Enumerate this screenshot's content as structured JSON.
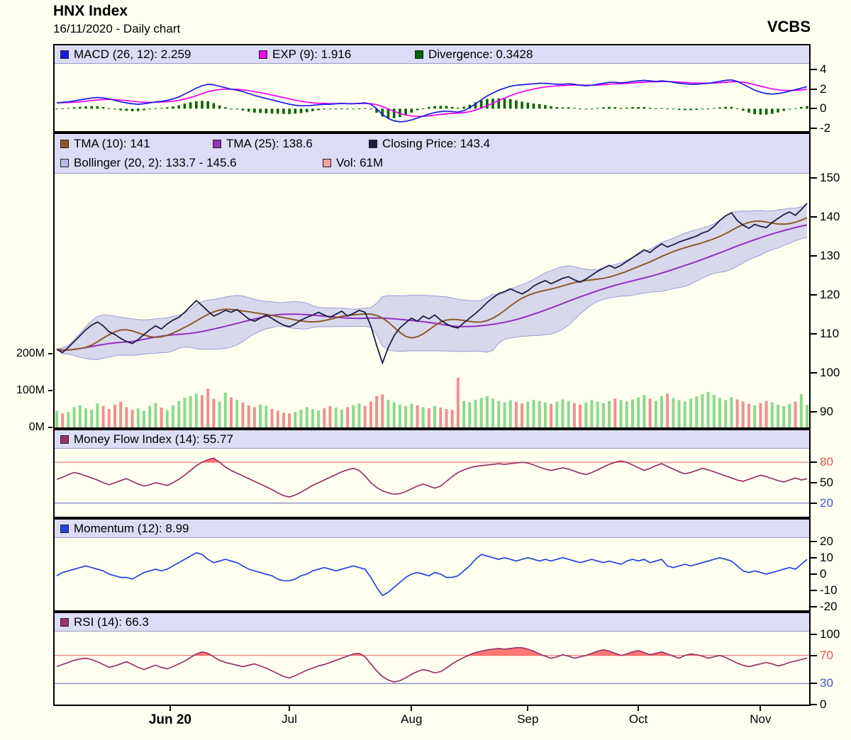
{
  "header": {
    "title": "HNX Index",
    "subtitle": "16/11/2020 - Daily chart",
    "brand": "VCBS"
  },
  "colors": {
    "background": "#FFFFF0",
    "legend_strip": "#DCDCF6",
    "frame": "#000000",
    "level_red": "#F07070",
    "level_blue": "#7070C8"
  },
  "xaxis": {
    "labels": [
      {
        "label": "Jun 20",
        "index": 19.5,
        "bold": true
      },
      {
        "label": "Jul",
        "index": 40,
        "bold": false
      },
      {
        "label": "Aug",
        "index": 61,
        "bold": false
      },
      {
        "label": "Sep",
        "index": 81,
        "bold": false
      },
      {
        "label": "Oct",
        "index": 100,
        "bold": false
      },
      {
        "label": "Nov",
        "index": 121,
        "bold": false
      }
    ]
  },
  "chart_data": [
    {
      "id": "macd",
      "type": "line",
      "title": "MACD panel",
      "legend": [
        {
          "swatch": "#1A1AE6",
          "label": "MACD (26, 12): 2.259"
        },
        {
          "swatch": "#EE00EE",
          "label": "EXP (9): 1.916"
        },
        {
          "swatch": "#006600",
          "label": "Divergence: 0.3428"
        }
      ],
      "ylim": [
        -2.3,
        4.6
      ],
      "yticks": [
        {
          "value": 4,
          "label": "4",
          "color": "#000000"
        },
        {
          "value": 2,
          "label": "2",
          "color": "#000000"
        },
        {
          "value": 0,
          "label": "0",
          "color": "#000000"
        },
        {
          "value": -2,
          "label": "-2",
          "color": "#000000"
        }
      ],
      "signal_period": 9,
      "macd": [
        0.6,
        0.65,
        0.7,
        0.8,
        0.9,
        1.0,
        1.1,
        1.15,
        1.1,
        1.0,
        0.85,
        0.7,
        0.6,
        0.5,
        0.45,
        0.5,
        0.6,
        0.7,
        0.75,
        0.85,
        1.0,
        1.2,
        1.5,
        1.8,
        2.1,
        2.35,
        2.5,
        2.45,
        2.3,
        2.15,
        2.0,
        1.9,
        1.75,
        1.55,
        1.35,
        1.2,
        1.05,
        0.9,
        0.75,
        0.6,
        0.45,
        0.35,
        0.3,
        0.3,
        0.35,
        0.4,
        0.45,
        0.45,
        0.5,
        0.55,
        0.5,
        0.5,
        0.55,
        0.6,
        0.45,
        0.0,
        -0.6,
        -1.0,
        -1.25,
        -1.35,
        -1.3,
        -1.15,
        -0.95,
        -0.75,
        -0.55,
        -0.4,
        -0.3,
        -0.25,
        -0.3,
        -0.35,
        -0.2,
        0.1,
        0.5,
        0.9,
        1.3,
        1.6,
        1.9,
        2.1,
        2.3,
        2.4,
        2.45,
        2.5,
        2.55,
        2.6,
        2.6,
        2.55,
        2.5,
        2.5,
        2.55,
        2.5,
        2.4,
        2.35,
        2.4,
        2.5,
        2.6,
        2.7,
        2.7,
        2.65,
        2.7,
        2.8,
        2.85,
        2.9,
        2.85,
        2.8,
        2.85,
        2.8,
        2.7,
        2.6,
        2.55,
        2.5,
        2.5,
        2.55,
        2.6,
        2.7,
        2.8,
        2.9,
        2.95,
        2.8,
        2.5,
        2.2,
        1.9,
        1.7,
        1.55,
        1.5,
        1.55,
        1.65,
        1.8,
        1.95,
        2.1,
        2.26
      ]
    },
    {
      "id": "price",
      "type": "line",
      "title": "Price panel",
      "legend_rows": [
        [
          {
            "swatch": "#8B5A2B",
            "label": "TMA (10): 141"
          },
          {
            "swatch": "#9030C0",
            "label": "TMA (25): 138.6"
          },
          {
            "swatch": "#1C1C46",
            "label": "Closing Price: 143.4"
          }
        ],
        [
          {
            "swatch": "#B8B8EA",
            "label": "Bollinger (20, 2): 133.7 - 145.6"
          },
          {
            "swatch": "#F4A0A0",
            "label": "Vol: 61M"
          }
        ]
      ],
      "ylim": [
        86,
        151
      ],
      "yticks": [
        {
          "value": 150,
          "label": "150",
          "color": "#000000"
        },
        {
          "value": 140,
          "label": "140",
          "color": "#000000"
        },
        {
          "value": 130,
          "label": "130",
          "color": "#000000"
        },
        {
          "value": 120,
          "label": "120",
          "color": "#000000"
        },
        {
          "value": 110,
          "label": "110",
          "color": "#000000"
        },
        {
          "value": 100,
          "label": "100",
          "color": "#000000"
        },
        {
          "value": 90,
          "label": "90",
          "color": "#000000"
        }
      ],
      "volume_ticks": [
        {
          "value": 200,
          "label": "200M"
        },
        {
          "value": 100,
          "label": "100M"
        },
        {
          "value": 0,
          "label": "0M"
        }
      ],
      "vol_colors": {
        "up": "#8CD98C",
        "down": "#F09090"
      },
      "tma_periods": [
        10,
        25
      ],
      "bollinger_period": 20,
      "bollinger_stddev": 2,
      "close": [
        106.0,
        105.2,
        106.5,
        108.0,
        109.5,
        111.0,
        112.2,
        113.0,
        112.0,
        110.5,
        109.8,
        108.8,
        108.0,
        107.5,
        108.5,
        109.8,
        111.0,
        112.0,
        111.2,
        112.5,
        113.5,
        114.2,
        115.5,
        117.0,
        118.5,
        117.2,
        115.8,
        114.5,
        115.2,
        116.0,
        115.5,
        116.2,
        115.0,
        113.8,
        113.2,
        114.0,
        114.8,
        113.9,
        113.0,
        112.2,
        111.8,
        112.5,
        113.5,
        114.2,
        114.8,
        115.5,
        114.8,
        114.2,
        115.0,
        115.8,
        114.5,
        115.2,
        116.0,
        115.5,
        112.0,
        107.0,
        102.5,
        106.5,
        109.5,
        111.5,
        112.8,
        114.0,
        113.2,
        114.5,
        113.8,
        114.8,
        113.5,
        112.5,
        111.8,
        111.5,
        112.8,
        114.0,
        115.2,
        116.5,
        118.0,
        119.2,
        120.3,
        120.8,
        121.5,
        120.8,
        120.2,
        121.0,
        122.2,
        123.0,
        123.6,
        122.8,
        123.5,
        124.2,
        124.6,
        123.8,
        123.2,
        124.0,
        125.0,
        126.0,
        126.8,
        127.5,
        126.8,
        127.5,
        128.5,
        129.5,
        130.5,
        131.5,
        130.8,
        132.0,
        133.0,
        132.2,
        132.8,
        133.5,
        134.0,
        134.5,
        135.0,
        135.8,
        136.3,
        137.5,
        139.0,
        140.2,
        141.0,
        139.0,
        137.8,
        137.0,
        138.0,
        137.5,
        137.2,
        138.5,
        139.5,
        140.5,
        141.2,
        140.3,
        141.8,
        143.4
      ],
      "volume_m": [
        45,
        38,
        42,
        55,
        60,
        52,
        48,
        65,
        58,
        50,
        62,
        70,
        55,
        48,
        52,
        45,
        58,
        66,
        54,
        47,
        60,
        72,
        80,
        85,
        92,
        88,
        105,
        78,
        70,
        95,
        82,
        75,
        68,
        60,
        55,
        62,
        58,
        50,
        45,
        40,
        38,
        42,
        48,
        55,
        50,
        46,
        52,
        58,
        54,
        48,
        55,
        60,
        65,
        58,
        70,
        85,
        90,
        75,
        68,
        62,
        58,
        64,
        60,
        55,
        52,
        58,
        54,
        50,
        48,
        135,
        72,
        68,
        75,
        80,
        85,
        78,
        72,
        68,
        74,
        70,
        65,
        70,
        75,
        72,
        68,
        64,
        70,
        76,
        72,
        66,
        62,
        68,
        74,
        70,
        66,
        72,
        78,
        74,
        70,
        76,
        82,
        88,
        78,
        72,
        85,
        92,
        80,
        74,
        70,
        78,
        84,
        90,
        96,
        88,
        80,
        74,
        82,
        76,
        70,
        64,
        60,
        66,
        72,
        68,
        62,
        58,
        64,
        70,
        90,
        61
      ]
    },
    {
      "id": "mfi",
      "type": "line",
      "title": "Money Flow Index panel",
      "legend": [
        {
          "swatch": "#993366",
          "label": "Money Flow Index (14): 55.77"
        }
      ],
      "ylim": [
        0,
        100
      ],
      "yticks": [
        {
          "value": 80,
          "label": "80",
          "color": "#E05050"
        },
        {
          "value": 50,
          "label": "50",
          "color": "#000000"
        },
        {
          "value": 20,
          "label": "20",
          "color": "#4455CC"
        }
      ],
      "levels": [
        {
          "value": 80,
          "color": "#F07070"
        },
        {
          "value": 20,
          "color": "#7070C8"
        }
      ],
      "fill_above": 80,
      "fill_color": "#FF5555",
      "values": [
        55,
        58,
        62,
        65,
        63,
        60,
        57,
        54,
        50,
        47,
        50,
        53,
        56,
        52,
        48,
        45,
        47,
        50,
        48,
        46,
        50,
        55,
        61,
        68,
        75,
        80,
        84,
        86,
        80,
        73,
        68,
        64,
        60,
        56,
        52,
        48,
        44,
        40,
        35,
        31,
        29,
        32,
        36,
        41,
        46,
        50,
        54,
        58,
        62,
        66,
        69,
        71,
        68,
        60,
        50,
        43,
        38,
        35,
        33,
        34,
        37,
        41,
        45,
        48,
        45,
        42,
        45,
        52,
        59,
        65,
        69,
        72,
        74,
        75,
        76,
        77,
        78,
        77,
        78,
        79,
        80,
        79,
        76,
        73,
        70,
        68,
        70,
        72,
        70,
        67,
        64,
        62,
        65,
        69,
        73,
        77,
        80,
        82,
        80,
        76,
        72,
        68,
        71,
        75,
        78,
        74,
        70,
        66,
        63,
        65,
        68,
        71,
        69,
        66,
        63,
        60,
        57,
        54,
        52,
        55,
        58,
        61,
        59,
        56,
        53,
        51,
        54,
        57,
        54,
        55.77
      ]
    },
    {
      "id": "momentum",
      "type": "line",
      "title": "Momentum panel",
      "legend": [
        {
          "swatch": "#2840E6",
          "label": "Momentum (12): 8.99"
        }
      ],
      "ylim": [
        -22,
        22
      ],
      "yticks": [
        {
          "value": 20,
          "label": "20",
          "color": "#000000"
        },
        {
          "value": 10,
          "label": "10",
          "color": "#000000"
        },
        {
          "value": 0,
          "label": "0",
          "color": "#000000"
        },
        {
          "value": -10,
          "label": "-10",
          "color": "#000000"
        },
        {
          "value": -20,
          "label": "-20",
          "color": "#000000"
        }
      ],
      "values": [
        -1,
        1,
        2,
        3,
        4,
        5,
        4,
        3,
        2,
        0,
        -1,
        -2,
        -2,
        -3,
        -1,
        1,
        2,
        3,
        2,
        3,
        5,
        7,
        9,
        11,
        13,
        12,
        9,
        7,
        8,
        9,
        8,
        7,
        5,
        3,
        2,
        1,
        0,
        -1,
        -3,
        -4,
        -4,
        -3,
        -1,
        0,
        2,
        3,
        4,
        3,
        2,
        3,
        4,
        5,
        4,
        3,
        -2,
        -8,
        -13,
        -11,
        -8,
        -5,
        -2,
        0,
        1,
        0,
        -1,
        1,
        0,
        -2,
        -2,
        -1,
        2,
        5,
        9,
        12,
        11,
        10,
        9,
        10,
        9,
        8,
        9,
        10,
        9,
        8,
        9,
        8,
        9,
        10,
        9,
        8,
        7,
        8,
        9,
        8,
        7,
        8,
        7,
        6,
        8,
        9,
        8,
        9,
        7,
        8,
        9,
        5,
        4,
        5,
        6,
        5,
        6,
        7,
        8,
        9,
        10,
        9,
        8,
        5,
        2,
        1,
        2,
        1,
        0,
        1,
        2,
        3,
        4,
        3,
        6,
        8.99
      ]
    },
    {
      "id": "rsi",
      "type": "line",
      "title": "RSI panel",
      "legend": [
        {
          "swatch": "#993366",
          "label": "RSI (14): 66.3"
        }
      ],
      "ylim": [
        0,
        104
      ],
      "yticks": [
        {
          "value": 100,
          "label": "100",
          "color": "#000000"
        },
        {
          "value": 70,
          "label": "70",
          "color": "#E05050"
        },
        {
          "value": 30,
          "label": "30",
          "color": "#4455CC"
        },
        {
          "value": 0,
          "label": "0",
          "color": "#000000"
        }
      ],
      "levels": [
        {
          "value": 70,
          "color": "#F07070"
        },
        {
          "value": 30,
          "color": "#7070C8"
        }
      ],
      "fill_above": 70,
      "fill_color": "#FF5555",
      "values": [
        54,
        57,
        60,
        63,
        65,
        66,
        64,
        61,
        57,
        53,
        55,
        58,
        61,
        57,
        53,
        50,
        53,
        56,
        53,
        51,
        54,
        58,
        62,
        67,
        72,
        75,
        73,
        68,
        63,
        60,
        58,
        56,
        54,
        56,
        58,
        55,
        52,
        48,
        44,
        40,
        38,
        41,
        45,
        49,
        52,
        55,
        57,
        60,
        63,
        66,
        69,
        72,
        73,
        68,
        58,
        48,
        40,
        35,
        32,
        34,
        38,
        43,
        47,
        50,
        48,
        45,
        47,
        52,
        58,
        63,
        67,
        71,
        74,
        76,
        78,
        79,
        80,
        79,
        80,
        81,
        81,
        79,
        76,
        72,
        69,
        66,
        68,
        71,
        69,
        66,
        68,
        70,
        73,
        76,
        78,
        76,
        73,
        70,
        72,
        75,
        77,
        74,
        71,
        73,
        75,
        72,
        69,
        66,
        70,
        72,
        71,
        69,
        66,
        68,
        70,
        67,
        63,
        59,
        56,
        54,
        56,
        58,
        60,
        58,
        55,
        57,
        60,
        62,
        64,
        66.3
      ]
    }
  ]
}
